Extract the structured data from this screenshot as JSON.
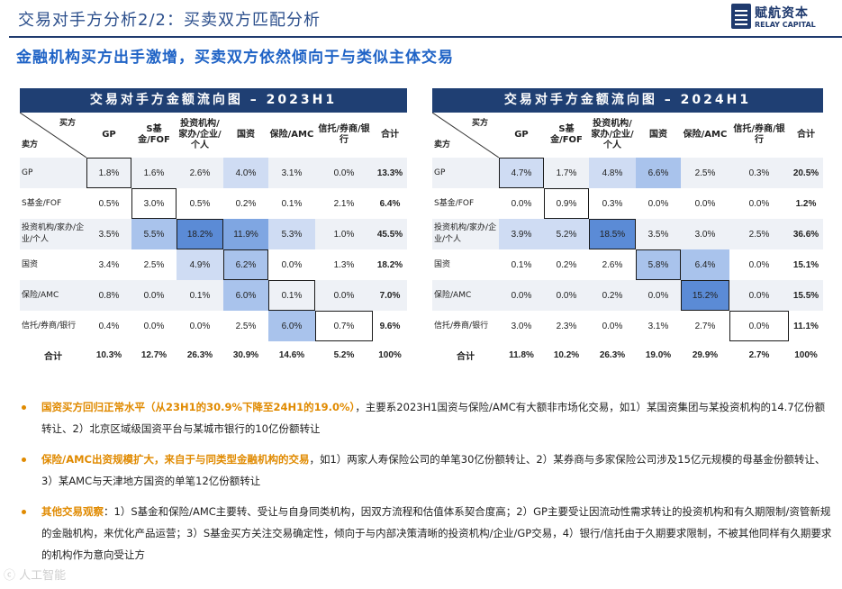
{
  "header": {
    "title": "交易对手方分析2/2：买卖双方匹配分析",
    "logo_cn": "赋航资本",
    "logo_en": "RELAY CAPITAL"
  },
  "subtitle": "金融机构买方出手激增，买卖双方依然倾向于与类似主体交易",
  "colors": {
    "navy": "#1f3f73",
    "accent_blue": "#1f63c6",
    "orange": "#e08a00"
  },
  "matrix_labels": {
    "buyer": "买方",
    "seller": "卖方",
    "columns": [
      "GP",
      "S基金/FOF",
      "投资机构/家办/企业/个人",
      "国资",
      "保险/AMC",
      "信托/券商/银行",
      "合计"
    ],
    "rows": [
      "GP",
      "S基金/FOF",
      "投资机构/家办/企业/个人",
      "国资",
      "保险/AMC",
      "信托/券商/银行"
    ],
    "total": "合计"
  },
  "left": {
    "title": "交易对手方金额流向图 – 2023H1",
    "rows": [
      [
        "1.8%",
        "1.6%",
        "2.6%",
        "4.0%",
        "3.1%",
        "0.0%",
        "13.3%"
      ],
      [
        "0.5%",
        "3.0%",
        "0.5%",
        "0.2%",
        "0.1%",
        "2.1%",
        "6.4%"
      ],
      [
        "3.5%",
        "5.5%",
        "18.2%",
        "11.9%",
        "5.3%",
        "1.0%",
        "45.5%"
      ],
      [
        "3.4%",
        "2.5%",
        "4.9%",
        "6.2%",
        "0.0%",
        "1.3%",
        "18.2%"
      ],
      [
        "0.8%",
        "0.0%",
        "0.1%",
        "6.0%",
        "0.1%",
        "0.0%",
        "7.0%"
      ],
      [
        "0.4%",
        "0.0%",
        "0.0%",
        "2.5%",
        "6.0%",
        "0.7%",
        "9.6%"
      ]
    ],
    "totals": [
      "10.3%",
      "12.7%",
      "26.3%",
      "30.9%",
      "14.6%",
      "5.2%",
      "100%"
    ]
  },
  "right": {
    "title": "交易对手方金额流向图 – 2024H1",
    "rows": [
      [
        "4.7%",
        "1.7%",
        "4.8%",
        "6.6%",
        "2.5%",
        "0.3%",
        "20.5%"
      ],
      [
        "0.0%",
        "0.9%",
        "0.3%",
        "0.0%",
        "0.0%",
        "0.0%",
        "1.2%"
      ],
      [
        "3.9%",
        "5.2%",
        "18.5%",
        "3.5%",
        "3.0%",
        "2.5%",
        "36.6%"
      ],
      [
        "0.1%",
        "0.2%",
        "2.6%",
        "5.8%",
        "6.4%",
        "0.0%",
        "15.1%"
      ],
      [
        "0.0%",
        "0.0%",
        "0.2%",
        "0.0%",
        "15.2%",
        "0.0%",
        "15.5%"
      ],
      [
        "3.0%",
        "2.3%",
        "0.0%",
        "3.1%",
        "2.7%",
        "0.0%",
        "11.1%"
      ]
    ],
    "totals": [
      "11.8%",
      "10.2%",
      "26.3%",
      "19.0%",
      "29.9%",
      "2.7%",
      "100%"
    ]
  },
  "bullets": [
    {
      "highlight": "国资买方回归正常水平（从23H1的30.9%下降至24H1的19.0%）",
      "text": "，主要系2023H1国资与保险/AMC有大额非市场化交易，如1）某国资集团与某投资机构的14.7亿份额转让、2）北京区域级国资平台与某城市银行的10亿份额转让"
    },
    {
      "highlight": "保险/AMC出资规模扩大，来自于与同类型金融机构的交易",
      "text": "，如1）两家人寿保险公司的单笔30亿份额转让、2）某券商与多家保险公司涉及15亿元规模的母基金份额转让、3）某AMC与天津地方国资的单笔12亿份额转让"
    },
    {
      "highlight": "其他交易观察",
      "text": "：1）S基金和保险/AMC主要转、受让与自身同类机构，因双方流程和估值体系契合度高；2）GP主要受让因流动性需求转让的投资机构和有久期限制/资管新规的金融机构，来优化产品运营；3）S基金买方关注交易确定性，倾向于与内部决策清晰的投资机构/企业/GP交易，4）银行/信托由于久期要求限制，不被其他同样有久期要求的机构作为意向受让方"
    }
  ],
  "watermark": "ⓒ 人工智能"
}
